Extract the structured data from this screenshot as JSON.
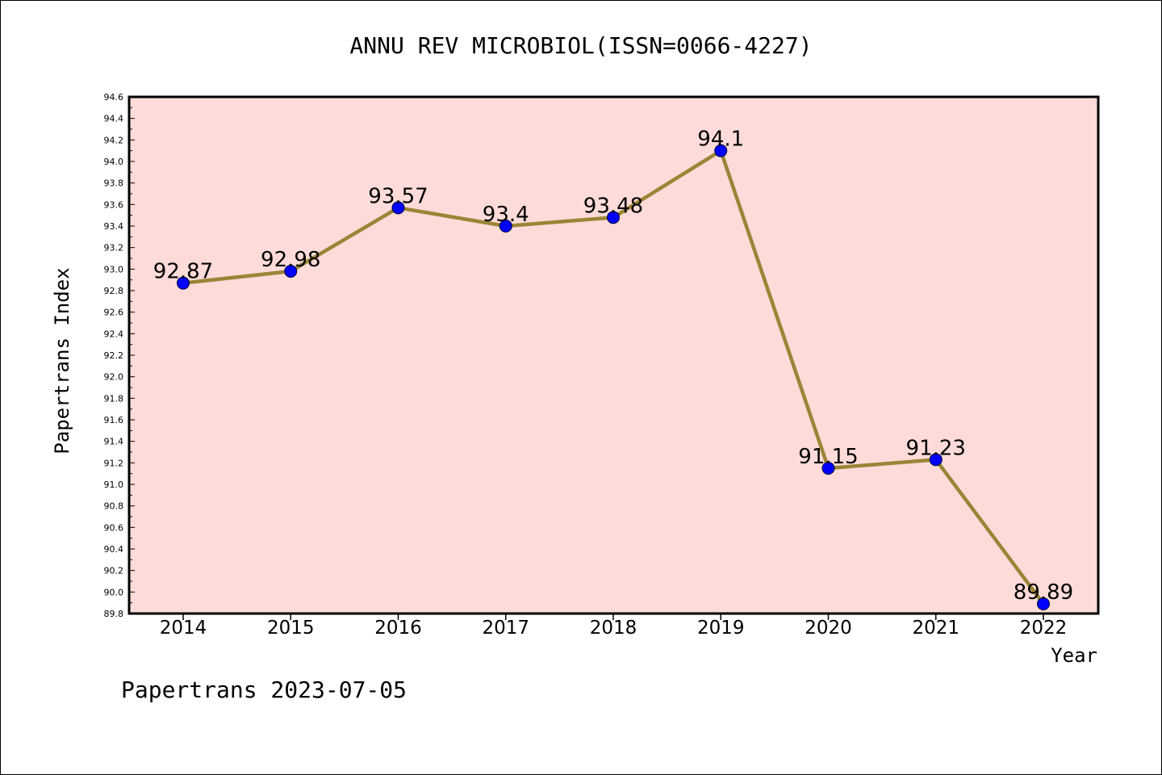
{
  "chart_data": {
    "type": "line",
    "title": "ANNU REV MICROBIOL(ISSN=0066-4227)",
    "xlabel": "Year",
    "ylabel": "Papertrans Index",
    "categories": [
      "2014",
      "2015",
      "2016",
      "2017",
      "2018",
      "2019",
      "2020",
      "2021",
      "2022"
    ],
    "series": [
      {
        "values": [
          92.87,
          92.98,
          93.57,
          93.4,
          93.48,
          94.1,
          91.15,
          91.23,
          89.89
        ],
        "labels": [
          "92.87",
          "92.98",
          "93.57",
          "93.4",
          "93.48",
          "94.1",
          "91.15",
          "91.23",
          "89.89"
        ]
      }
    ],
    "ylim": [
      89.8,
      94.6
    ],
    "yticks": [
      "89.8",
      "90.0",
      "90.2",
      "90.4",
      "90.6",
      "90.8",
      "91.0",
      "91.2",
      "91.4",
      "91.6",
      "91.8",
      "92.0",
      "92.2",
      "92.4",
      "92.6",
      "92.8",
      "93.0",
      "93.2",
      "93.4",
      "93.6",
      "93.8",
      "94.0",
      "94.2",
      "94.4",
      "94.6"
    ],
    "grid": false,
    "colors": {
      "plot_background": "#fddbd9",
      "line": "#998536",
      "marker": "#0000ff"
    }
  },
  "footer": "Papertrans 2023-07-05"
}
